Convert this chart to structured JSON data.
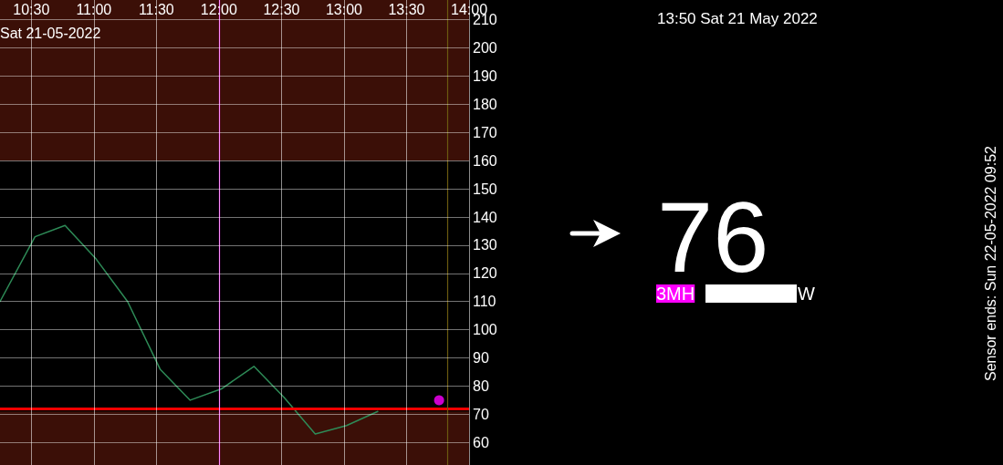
{
  "chart_data": {
    "type": "line",
    "annotations": [
      "Sat 21-05-2022",
      "13:50 Sat 21 May 2022",
      "76",
      "3MH",
      "W",
      "Sensor ends: Sun 22-05-2022 09:52"
    ],
    "x": [
      10.25,
      10.53,
      10.77,
      11.02,
      11.27,
      11.53,
      11.77,
      12.02,
      12.28,
      12.52,
      12.77,
      13.02,
      13.27
    ],
    "series": [
      {
        "color": "#2e8b57",
        "values": [
          110,
          133,
          137,
          125,
          110,
          86,
          75,
          79,
          87,
          76,
          63,
          66,
          71
        ]
      },
      {
        "type": "scatter",
        "color": "#ff00ff",
        "x": [
          13.76
        ],
        "values": [
          75
        ],
        "marker": "circle"
      }
    ],
    "xlim": [
      10.25,
      14.0
    ],
    "xticks": [
      {
        "value": 10.5,
        "label": "10:30"
      },
      {
        "value": 11.0,
        "label": "11:00"
      },
      {
        "value": 11.5,
        "label": "11:30"
      },
      {
        "value": 12.0,
        "label": "12:00"
      },
      {
        "value": 12.5,
        "label": "12:30"
      },
      {
        "value": 13.0,
        "label": "13:00"
      },
      {
        "value": 13.5,
        "label": "13:30"
      },
      {
        "value": 14.0,
        "label": "14:00"
      }
    ],
    "ylim": [
      52,
      217
    ],
    "yticks": [
      60,
      70,
      80,
      90,
      100,
      110,
      120,
      130,
      140,
      150,
      160,
      170,
      180,
      190,
      200,
      210
    ],
    "ref_lines": [
      {
        "axis": "y",
        "value": 72,
        "color": "#ff0000"
      },
      {
        "axis": "x",
        "value": 12.0,
        "color": "#ff00ff"
      },
      {
        "axis": "x",
        "value": 13.83,
        "color": "#6b5a10"
      }
    ],
    "bands": [
      {
        "axis": "y",
        "from": 160,
        "to": 217,
        "color": "#3b0f07"
      },
      {
        "axis": "y",
        "from": 52,
        "to": 71,
        "color": "#3b0f07"
      }
    ],
    "grid": true,
    "marker": "none",
    "line_style": "solid"
  }
}
